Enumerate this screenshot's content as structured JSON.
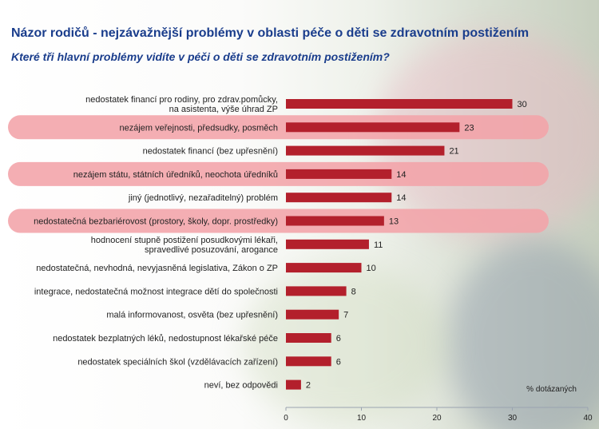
{
  "header": {
    "title": "Názor rodičů - nejzávažnější problémy v oblasti péče o děti se zdravotním postižením",
    "subtitle": "Které tři hlavní problémy vidíte v péči o děti se zdravotním postižením?"
  },
  "chart_data": {
    "type": "bar",
    "orientation": "horizontal",
    "categories": [
      "nedostatek financí pro rodiny, pro zdrav.pomůcky, na asistenta, výše úhrad ZP",
      "nezájem veřejnosti, předsudky, posměch",
      "nedostatek financí (bez upřesnění)",
      "nezájem státu, státních úředníků, neochota úředníků",
      "jiný (jednotlivý, nezařaditelný) problém",
      "nedostatečná bezbariérovost (prostory, školy, dopr. prostředky)",
      "hodnocení stupně postižení posudkovými lékaři, spravedlivé posuzování, arogance",
      "nedostatečná, nevhodná, nevyjasněná legislativa, Zákon o ZP",
      "integrace, nedostatečná možnost integrace dětí do společnosti",
      "malá informovanost, osvěta (bez upřesnění)",
      "nedostatek bezplatných léků, nedostupnost lékařské péče",
      "nedostatek speciálních škol (vzdělávacích zařízení)",
      "neví, bez odpovědi"
    ],
    "category_lines": [
      [
        "nedostatek financí pro rodiny, pro zdrav.pomůcky,",
        "na asistenta, výše úhrad ZP"
      ],
      [
        "nezájem veřejnosti, předsudky, posměch"
      ],
      [
        "nedostatek financí (bez upřesnění)"
      ],
      [
        "nezájem státu, státních úředníků, neochota úředníků"
      ],
      [
        "jiný (jednotlivý, nezařaditelný) problém"
      ],
      [
        "nedostatečná bezbariérovost (prostory, školy, dopr. prostředky)"
      ],
      [
        "hodnocení stupně postižení posudkovými lékaři,",
        "spravedlivé posuzování, arogance"
      ],
      [
        "nedostatečná, nevhodná, nevyjasněná legislativa, Zákon o ZP"
      ],
      [
        "integrace, nedostatečná možnost integrace dětí do společnosti"
      ],
      [
        "malá informovanost, osvěta (bez upřesnění)"
      ],
      [
        "nedostatek bezplatných léků, nedostupnost lékařské péče"
      ],
      [
        "nedostatek speciálních škol (vzdělávacích zařízení)"
      ],
      [
        "neví, bez odpovědi"
      ]
    ],
    "values": [
      30,
      23,
      21,
      14,
      14,
      13,
      11,
      10,
      8,
      7,
      6,
      6,
      2
    ],
    "highlighted": [
      false,
      true,
      false,
      true,
      false,
      true,
      false,
      false,
      false,
      false,
      false,
      false,
      false
    ],
    "xlim": [
      0,
      40
    ],
    "xticks": [
      0,
      10,
      20,
      30,
      40
    ],
    "unit_label": "% dotázaných",
    "grid": false,
    "bar_color": "#b3202c",
    "highlight_color": "#f2a3a8"
  }
}
